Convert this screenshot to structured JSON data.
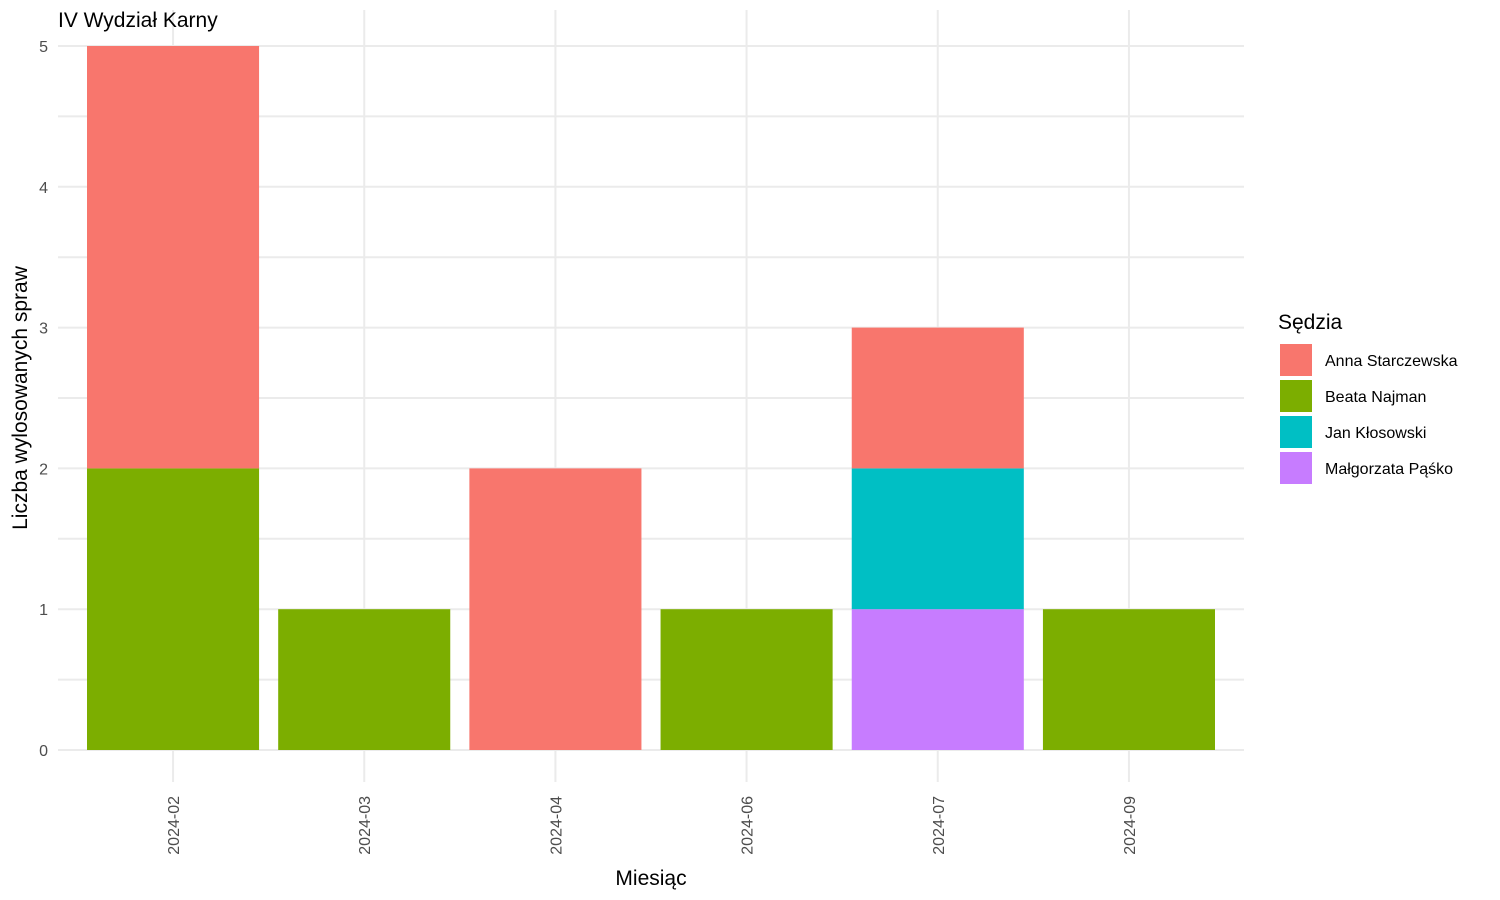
{
  "chart_data": {
    "type": "bar",
    "stacked": true,
    "title": "IV Wydział Karny",
    "xlabel": "Miesiąc",
    "ylabel": "Liczba wylosowanych spraw",
    "ylim": [
      0,
      5
    ],
    "yticks": [
      0,
      1,
      2,
      3,
      4,
      5
    ],
    "grid": true,
    "legend_title": "Sędzia",
    "legend_position": "right",
    "categories": [
      "2024-02",
      "2024-03",
      "2024-04",
      "2024-06",
      "2024-07",
      "2024-09"
    ],
    "series": [
      {
        "name": "Anna Starczewska",
        "color": "#F8766D",
        "values": [
          3,
          0,
          2,
          0,
          1,
          0
        ]
      },
      {
        "name": "Beata Najman",
        "color": "#7CAE00",
        "values": [
          2,
          1,
          0,
          1,
          0,
          1
        ]
      },
      {
        "name": "Jan Kłosowski",
        "color": "#00BFC4",
        "values": [
          0,
          0,
          0,
          0,
          1,
          0
        ]
      },
      {
        "name": "Małgorzata Pąśko",
        "color": "#C77CFF",
        "values": [
          0,
          0,
          0,
          0,
          1,
          0
        ]
      }
    ]
  }
}
